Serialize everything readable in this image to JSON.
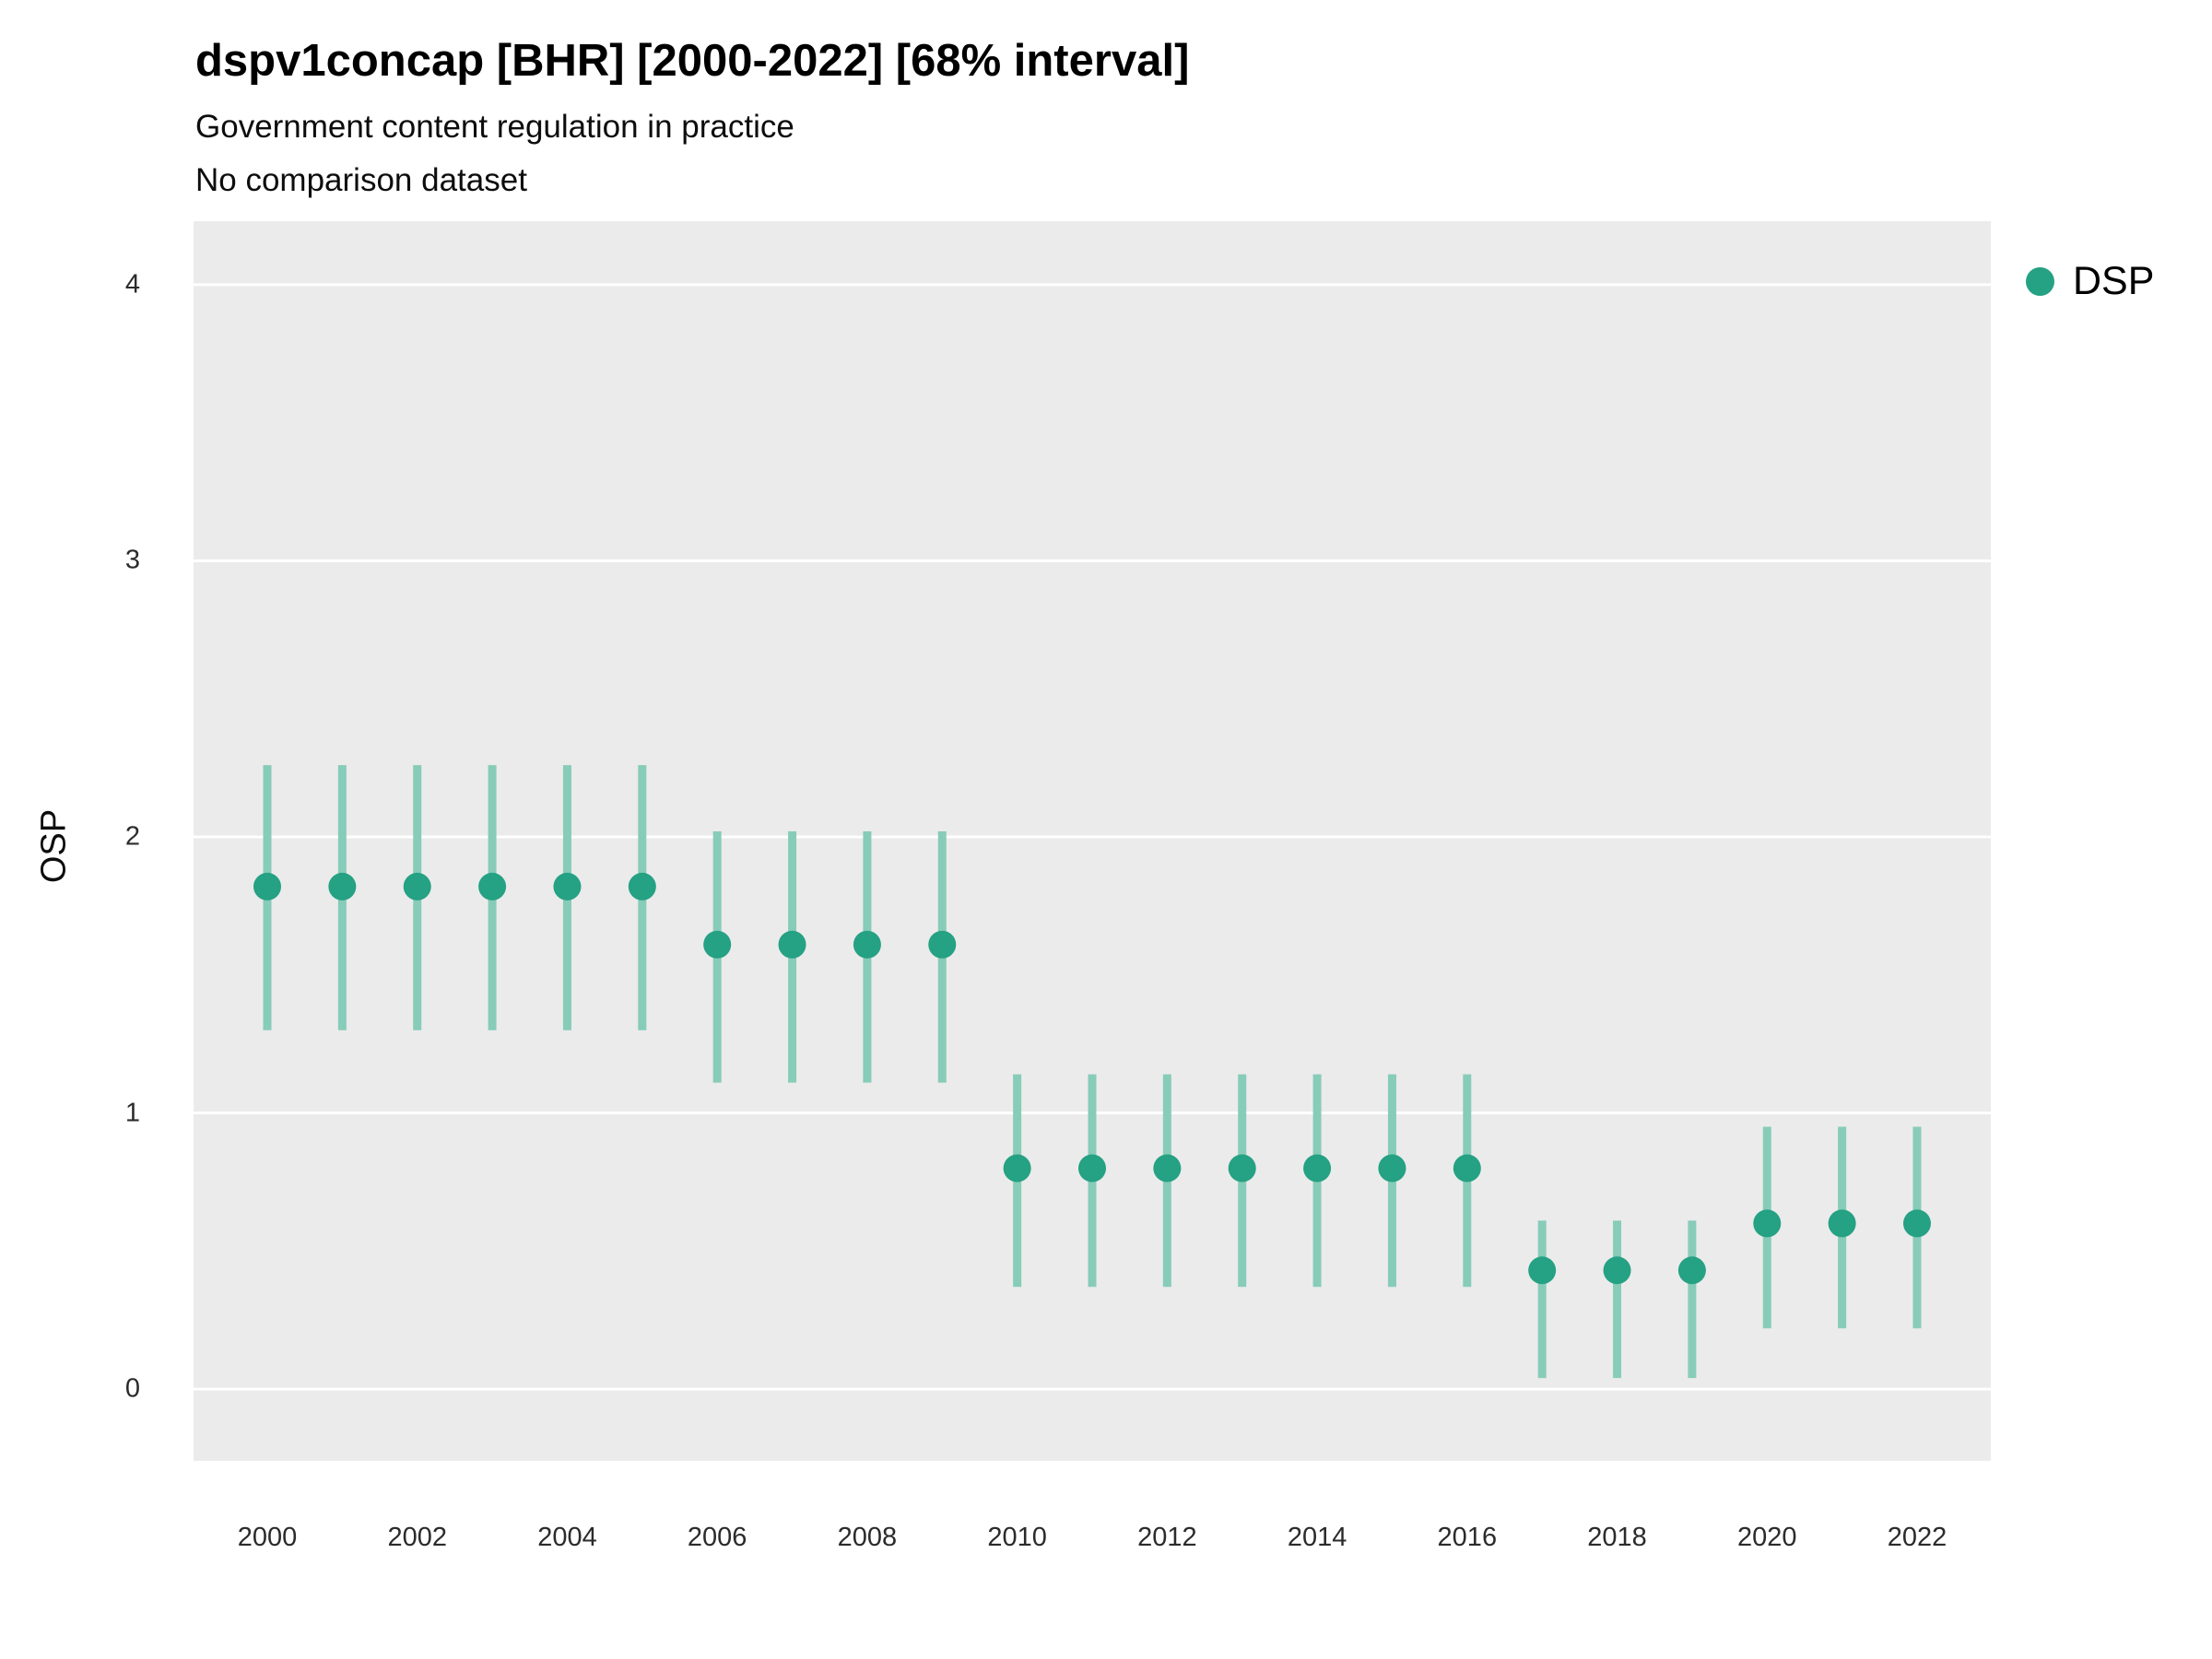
{
  "chart_data": {
    "type": "pointrange",
    "title": "dspv1concap [BHR] [2000-2022] [68% interval]",
    "subtitle": "Government content regulation in practice",
    "subtitle2": "No comparison dataset",
    "xlabel": "",
    "ylabel": "OSP",
    "ylim": [
      -0.26,
      4.23
    ],
    "yticks": [
      0,
      1,
      2,
      3,
      4
    ],
    "xticks": [
      2000,
      2002,
      2004,
      2006,
      2008,
      2010,
      2012,
      2014,
      2016,
      2018,
      2020,
      2022
    ],
    "grid": "major-horizontal-only",
    "legend_position": "right",
    "legend": [
      {
        "label": "DSP",
        "color": "#25a183"
      }
    ],
    "colors": {
      "point": "#25a183",
      "range": "#87ccb8",
      "panel": "#ebebeb",
      "grid": "#ffffff"
    },
    "series": [
      {
        "name": "DSP",
        "x": [
          2000,
          2001,
          2002,
          2003,
          2004,
          2005,
          2006,
          2007,
          2008,
          2009,
          2010,
          2011,
          2012,
          2013,
          2014,
          2015,
          2016,
          2017,
          2018,
          2019,
          2020,
          2021,
          2022
        ],
        "y": [
          1.82,
          1.82,
          1.82,
          1.82,
          1.82,
          1.82,
          1.61,
          1.61,
          1.61,
          1.61,
          0.8,
          0.8,
          0.8,
          0.8,
          0.8,
          0.8,
          0.8,
          0.43,
          0.43,
          0.43,
          0.6,
          0.6,
          0.6
        ],
        "ymin": [
          1.3,
          1.3,
          1.3,
          1.3,
          1.3,
          1.3,
          1.11,
          1.11,
          1.11,
          1.11,
          0.37,
          0.37,
          0.37,
          0.37,
          0.37,
          0.37,
          0.37,
          0.04,
          0.04,
          0.04,
          0.22,
          0.22,
          0.22
        ],
        "ymax": [
          2.26,
          2.26,
          2.26,
          2.26,
          2.26,
          2.26,
          2.02,
          2.02,
          2.02,
          2.02,
          1.14,
          1.14,
          1.14,
          1.14,
          1.14,
          1.14,
          1.14,
          0.61,
          0.61,
          0.61,
          0.95,
          0.95,
          0.95
        ]
      }
    ]
  }
}
